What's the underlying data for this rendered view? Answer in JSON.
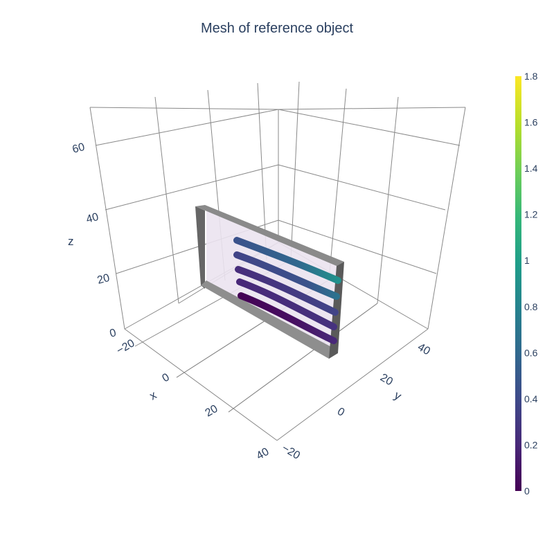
{
  "chart_data": {
    "type": "mesh3d",
    "title": "Mesh of reference object",
    "axes": {
      "x": {
        "label": "x",
        "ticks": [
          "−20",
          "0",
          "20",
          "40"
        ],
        "range": [
          -30,
          45
        ]
      },
      "y": {
        "label": "y",
        "ticks": [
          "−20",
          "0",
          "20",
          "40"
        ],
        "range": [
          -25,
          50
        ]
      },
      "z": {
        "label": "z",
        "ticks": [
          "0",
          "20",
          "40",
          "60"
        ],
        "range": [
          0,
          70
        ]
      }
    },
    "colorbar": {
      "colorscale": "Viridis",
      "range": [
        0,
        1.8
      ],
      "ticks": [
        "0",
        "0.2",
        "0.4",
        "0.6",
        "0.8",
        "1",
        "1.2",
        "1.4",
        "1.6",
        "1.8"
      ]
    },
    "objects": [
      {
        "name": "plate",
        "color": "#808080",
        "face_color": "#ebe3ef"
      },
      {
        "name": "tube-1",
        "value_range": [
          0.3,
          0.9
        ]
      },
      {
        "name": "tube-2",
        "value_range": [
          0.25,
          0.7
        ]
      },
      {
        "name": "tube-3",
        "value_range": [
          0.2,
          0.5
        ]
      },
      {
        "name": "tube-4",
        "value_range": [
          0.15,
          0.35
        ]
      },
      {
        "name": "tube-5",
        "value_range": [
          0.05,
          0.25
        ]
      }
    ],
    "grid": true,
    "legend": "none"
  }
}
